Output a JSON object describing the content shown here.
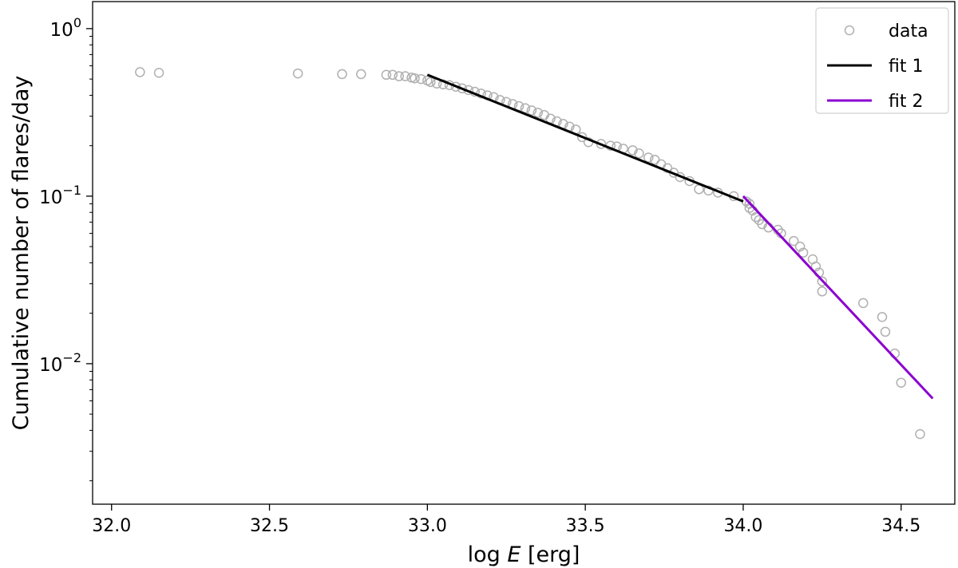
{
  "chart_data": {
    "type": "scatter",
    "xlabel": "log E [erg]",
    "xlabel_prefix": "log ",
    "xlabel_var": "E",
    "xlabel_unit": " [erg]",
    "ylabel": "Cumulative number of flares/day",
    "xlim": [
      31.94,
      34.67
    ],
    "ylim": [
      0.00145,
      1.45
    ],
    "yscale": "log",
    "grid": false,
    "legend_position": "top-right",
    "x_ticks": [
      {
        "value": 32.0,
        "label": "32.0"
      },
      {
        "value": 32.5,
        "label": "32.5"
      },
      {
        "value": 33.0,
        "label": "33.0"
      },
      {
        "value": 33.5,
        "label": "33.5"
      },
      {
        "value": 34.0,
        "label": "34.0"
      },
      {
        "value": 34.5,
        "label": "34.5"
      }
    ],
    "y_ticks": [
      {
        "value": 1,
        "base": "10",
        "exp": "0"
      },
      {
        "value": 0.1,
        "base": "10",
        "exp": "−1"
      },
      {
        "value": 0.01,
        "base": "10",
        "exp": "−2"
      }
    ],
    "series": [
      {
        "name": "data",
        "kind": "scatter",
        "marker": "open-circle",
        "color": "#b0b0b0",
        "points": [
          [
            32.09,
            0.55
          ],
          [
            32.15,
            0.545
          ],
          [
            32.59,
            0.54
          ],
          [
            32.73,
            0.535
          ],
          [
            32.79,
            0.535
          ],
          [
            32.87,
            0.53
          ],
          [
            32.89,
            0.53
          ],
          [
            32.91,
            0.52
          ],
          [
            32.93,
            0.52
          ],
          [
            32.95,
            0.51
          ],
          [
            32.96,
            0.505
          ],
          [
            32.98,
            0.5
          ],
          [
            33.0,
            0.49
          ],
          [
            33.01,
            0.48
          ],
          [
            33.03,
            0.47
          ],
          [
            33.05,
            0.465
          ],
          [
            33.07,
            0.46
          ],
          [
            33.09,
            0.45
          ],
          [
            33.11,
            0.44
          ],
          [
            33.13,
            0.43
          ],
          [
            33.15,
            0.42
          ],
          [
            33.17,
            0.41
          ],
          [
            33.19,
            0.4
          ],
          [
            33.21,
            0.39
          ],
          [
            33.23,
            0.375
          ],
          [
            33.25,
            0.365
          ],
          [
            33.27,
            0.355
          ],
          [
            33.29,
            0.345
          ],
          [
            33.31,
            0.335
          ],
          [
            33.33,
            0.325
          ],
          [
            33.35,
            0.315
          ],
          [
            33.37,
            0.305
          ],
          [
            33.39,
            0.29
          ],
          [
            33.41,
            0.28
          ],
          [
            33.43,
            0.27
          ],
          [
            33.45,
            0.26
          ],
          [
            33.47,
            0.25
          ],
          [
            33.49,
            0.225
          ],
          [
            33.51,
            0.21
          ],
          [
            33.55,
            0.205
          ],
          [
            33.58,
            0.2
          ],
          [
            33.6,
            0.198
          ],
          [
            33.62,
            0.192
          ],
          [
            33.65,
            0.188
          ],
          [
            33.67,
            0.18
          ],
          [
            33.7,
            0.17
          ],
          [
            33.72,
            0.165
          ],
          [
            33.74,
            0.155
          ],
          [
            33.76,
            0.147
          ],
          [
            33.78,
            0.138
          ],
          [
            33.8,
            0.13
          ],
          [
            33.83,
            0.123
          ],
          [
            33.86,
            0.11
          ],
          [
            33.89,
            0.108
          ],
          [
            33.92,
            0.105
          ],
          [
            33.97,
            0.1
          ],
          [
            34.01,
            0.093
          ],
          [
            34.02,
            0.09
          ],
          [
            34.02,
            0.085
          ],
          [
            34.03,
            0.082
          ],
          [
            34.04,
            0.075
          ],
          [
            34.05,
            0.072
          ],
          [
            34.06,
            0.068
          ],
          [
            34.08,
            0.065
          ],
          [
            34.11,
            0.063
          ],
          [
            34.12,
            0.06
          ],
          [
            34.16,
            0.054
          ],
          [
            34.18,
            0.05
          ],
          [
            34.19,
            0.046
          ],
          [
            34.22,
            0.042
          ],
          [
            34.23,
            0.038
          ],
          [
            34.24,
            0.035
          ],
          [
            34.25,
            0.031
          ],
          [
            34.25,
            0.027
          ],
          [
            34.38,
            0.023
          ],
          [
            34.44,
            0.019
          ],
          [
            34.45,
            0.0155
          ],
          [
            34.48,
            0.0115
          ],
          [
            34.5,
            0.0077
          ],
          [
            34.56,
            0.0038
          ]
        ]
      },
      {
        "name": "fit 1",
        "kind": "line",
        "color": "#000000",
        "points": [
          [
            33.0,
            0.53
          ],
          [
            34.0,
            0.093
          ]
        ]
      },
      {
        "name": "fit 2",
        "kind": "line",
        "color": "#8b00d0",
        "points": [
          [
            34.0,
            0.1
          ],
          [
            34.6,
            0.0062
          ]
        ]
      }
    ]
  }
}
